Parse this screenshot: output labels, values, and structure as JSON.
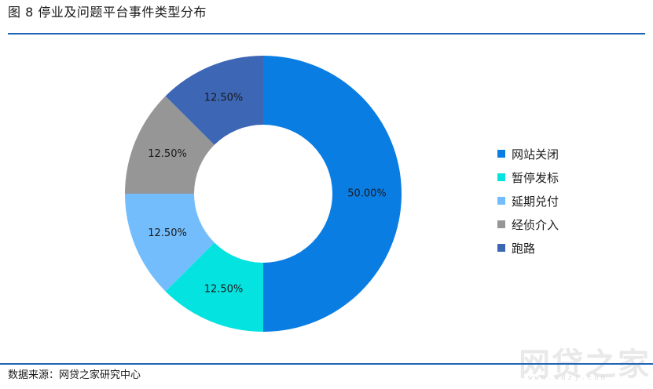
{
  "figure": {
    "title": "图 8   停业及问题平台事件类型分布",
    "source": "数据来源：网贷之家研究中心"
  },
  "watermark": {
    "text": "网贷之家",
    "url": "www.wdzj.com"
  },
  "colors": {
    "rule": "#1f64b7"
  },
  "chart_data": {
    "type": "pie",
    "variant": "donut",
    "title": "",
    "categories": [
      "网站关闭",
      "暂停发标",
      "延期兑付",
      "经侦介入",
      "跑路"
    ],
    "values": [
      50.0,
      12.5,
      12.5,
      12.5,
      12.5
    ],
    "labels": [
      "50.00%",
      "12.50%",
      "12.50%",
      "12.50%",
      "12.50%"
    ],
    "colors": [
      "#0a7de3",
      "#05e3e0",
      "#74bdfc",
      "#969696",
      "#3d66b5"
    ],
    "legend_position": "right"
  }
}
